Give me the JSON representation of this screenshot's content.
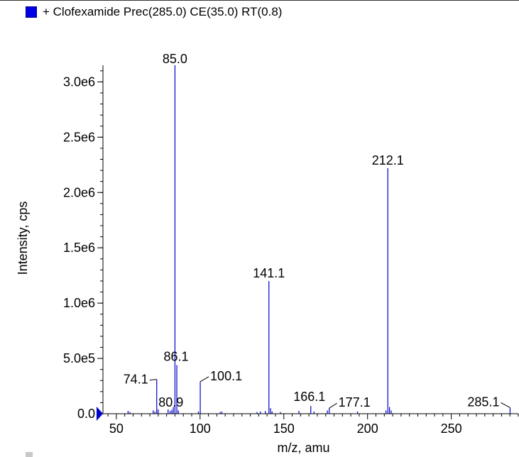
{
  "legend": {
    "text": "+ Clofexamide Prec(285.0) CE(35.0) RT(0.8)",
    "swatch_color": "#0000e6"
  },
  "chart_data": {
    "type": "bar",
    "xlabel": "m/z, amu",
    "ylabel": "Intensity, cps",
    "xlim": [
      42,
      290
    ],
    "ylim": [
      0,
      3150000.0
    ],
    "x_ticks": [
      {
        "value": 50,
        "label": "50"
      },
      {
        "value": 100,
        "label": "100"
      },
      {
        "value": 150,
        "label": "150"
      },
      {
        "value": 200,
        "label": "200"
      },
      {
        "value": 250,
        "label": "250"
      }
    ],
    "y_ticks": [
      {
        "value": 0,
        "label": "0.0"
      },
      {
        "value": 500000,
        "label": "5.0e5"
      },
      {
        "value": 1000000,
        "label": "1.0e6"
      },
      {
        "value": 1500000,
        "label": "1.5e6"
      },
      {
        "value": 2000000,
        "label": "2.0e6"
      },
      {
        "value": 2500000,
        "label": "2.5e6"
      },
      {
        "value": 3000000,
        "label": "3.0e6"
      }
    ],
    "labeled_peaks": [
      {
        "mz": 74.1,
        "intensity": 310000,
        "label": "74.1"
      },
      {
        "mz": 80.9,
        "intensity": 40000,
        "label": "80.9"
      },
      {
        "mz": 85.0,
        "intensity": 3150000,
        "label": "85.0"
      },
      {
        "mz": 86.1,
        "intensity": 440000,
        "label": "86.1"
      },
      {
        "mz": 100.1,
        "intensity": 290000,
        "label": "100.1"
      },
      {
        "mz": 141.1,
        "intensity": 1200000,
        "label": "141.1"
      },
      {
        "mz": 166.1,
        "intensity": 70000,
        "label": "166.1"
      },
      {
        "mz": 177.1,
        "intensity": 50000,
        "label": "177.1"
      },
      {
        "mz": 212.1,
        "intensity": 2220000,
        "label": "212.1"
      },
      {
        "mz": 285.1,
        "intensity": 55000,
        "label": "285.1"
      }
    ],
    "minor_peaks": [
      {
        "mz": 57.0,
        "intensity": 25000
      },
      {
        "mz": 58.1,
        "intensity": 15000
      },
      {
        "mz": 72.0,
        "intensity": 30000
      },
      {
        "mz": 73.0,
        "intensity": 20000
      },
      {
        "mz": 75.0,
        "intensity": 40000
      },
      {
        "mz": 82.1,
        "intensity": 25000
      },
      {
        "mz": 83.1,
        "intensity": 35000
      },
      {
        "mz": 84.0,
        "intensity": 60000
      },
      {
        "mz": 87.0,
        "intensity": 30000
      },
      {
        "mz": 99.0,
        "intensity": 20000
      },
      {
        "mz": 112.0,
        "intensity": 15000
      },
      {
        "mz": 113.0,
        "intensity": 20000
      },
      {
        "mz": 134.0,
        "intensity": 15000
      },
      {
        "mz": 136.0,
        "intensity": 20000
      },
      {
        "mz": 139.0,
        "intensity": 25000
      },
      {
        "mz": 142.1,
        "intensity": 50000
      },
      {
        "mz": 143.0,
        "intensity": 20000
      },
      {
        "mz": 148.0,
        "intensity": 15000
      },
      {
        "mz": 159.0,
        "intensity": 25000
      },
      {
        "mz": 168.0,
        "intensity": 20000
      },
      {
        "mz": 176.0,
        "intensity": 30000
      },
      {
        "mz": 194.0,
        "intensity": 20000
      },
      {
        "mz": 211.0,
        "intensity": 30000
      },
      {
        "mz": 213.1,
        "intensity": 60000
      },
      {
        "mz": 214.1,
        "intensity": 30000
      }
    ],
    "bar_color": "#0000cc",
    "grid": false
  }
}
